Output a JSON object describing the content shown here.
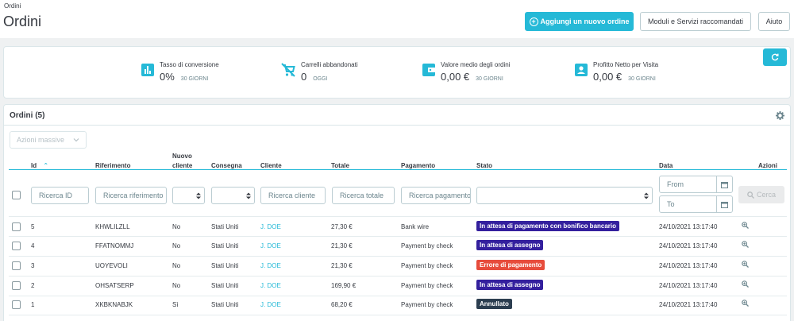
{
  "header": {
    "breadcrumb": "Ordini",
    "title": "Ordini",
    "add_order_label": "Aggiungi un nuovo ordine",
    "modules_label": "Moduli e Servizi raccomandati",
    "help_label": "Aiuto"
  },
  "kpis": [
    {
      "icon": "chart-bars-icon",
      "label": "Tasso di conversione",
      "value": "0%",
      "sub": "30 GIORNI"
    },
    {
      "icon": "cart-off-icon",
      "label": "Carrelli abbandonati",
      "value": "0",
      "sub": "OGGI"
    },
    {
      "icon": "wallet-icon",
      "label": "Valore medio degli ordini",
      "value": "0,00 €",
      "sub": "30 GIORNI"
    },
    {
      "icon": "account-box-icon",
      "label": "Profitto Netto per Visita",
      "value": "0,00 €",
      "sub": "30 GIORNI"
    }
  ],
  "orders": {
    "title": "Ordini (5)",
    "bulk_label": "Azioni massive",
    "columns": {
      "id": "Id",
      "reference": "Riferimento",
      "new_client_1": "Nuovo",
      "new_client_2": "cliente",
      "delivery": "Consegna",
      "customer": "Cliente",
      "total": "Totale",
      "payment": "Pagamento",
      "status": "Stato",
      "date": "Data",
      "actions": "Azioni"
    },
    "filters": {
      "id_placeholder": "Ricerca ID",
      "reference_placeholder": "Ricerca riferimento",
      "customer_placeholder": "Ricerca cliente",
      "total_placeholder": "Ricerca totale",
      "payment_placeholder": "Ricerca pagamento",
      "date_from": "From",
      "date_to": "To",
      "search_label": "Cerca"
    },
    "rows": [
      {
        "id": "5",
        "reference": "KHWLILZLL",
        "new": "No",
        "delivery": "Stati Uniti",
        "customer": "J. DOE",
        "total": "27,30 €",
        "payment": "Bank wire",
        "status": "In attesa di pagamento con bonifico bancario",
        "status_color": "#34209e",
        "date": "24/10/2021 13:17:40"
      },
      {
        "id": "4",
        "reference": "FFATNOMMJ",
        "new": "No",
        "delivery": "Stati Uniti",
        "customer": "J. DOE",
        "total": "21,30 €",
        "payment": "Payment by check",
        "status": "In attesa di assegno",
        "status_color": "#34209e",
        "date": "24/10/2021 13:17:40"
      },
      {
        "id": "3",
        "reference": "UOYEVOLI",
        "new": "No",
        "delivery": "Stati Uniti",
        "customer": "J. DOE",
        "total": "21,30 €",
        "payment": "Payment by check",
        "status": "Errore di pagamento",
        "status_color": "#e74c3c",
        "date": "24/10/2021 13:17:40"
      },
      {
        "id": "2",
        "reference": "OHSATSERP",
        "new": "No",
        "delivery": "Stati Uniti",
        "customer": "J. DOE",
        "total": "169,90 €",
        "payment": "Payment by check",
        "status": "In attesa di assegno",
        "status_color": "#34209e",
        "date": "24/10/2021 13:17:40"
      },
      {
        "id": "1",
        "reference": "XKBKNABJK",
        "new": "Sì",
        "delivery": "Stati Uniti",
        "customer": "J. DOE",
        "total": "68,20 €",
        "payment": "Payment by check",
        "status": "Annullato",
        "status_color": "#2c3e50",
        "date": "24/10/2021 13:17:40"
      }
    ]
  },
  "colors": {
    "accent": "#25b9d7",
    "text": "#363a41",
    "muted": "#6c868e"
  }
}
